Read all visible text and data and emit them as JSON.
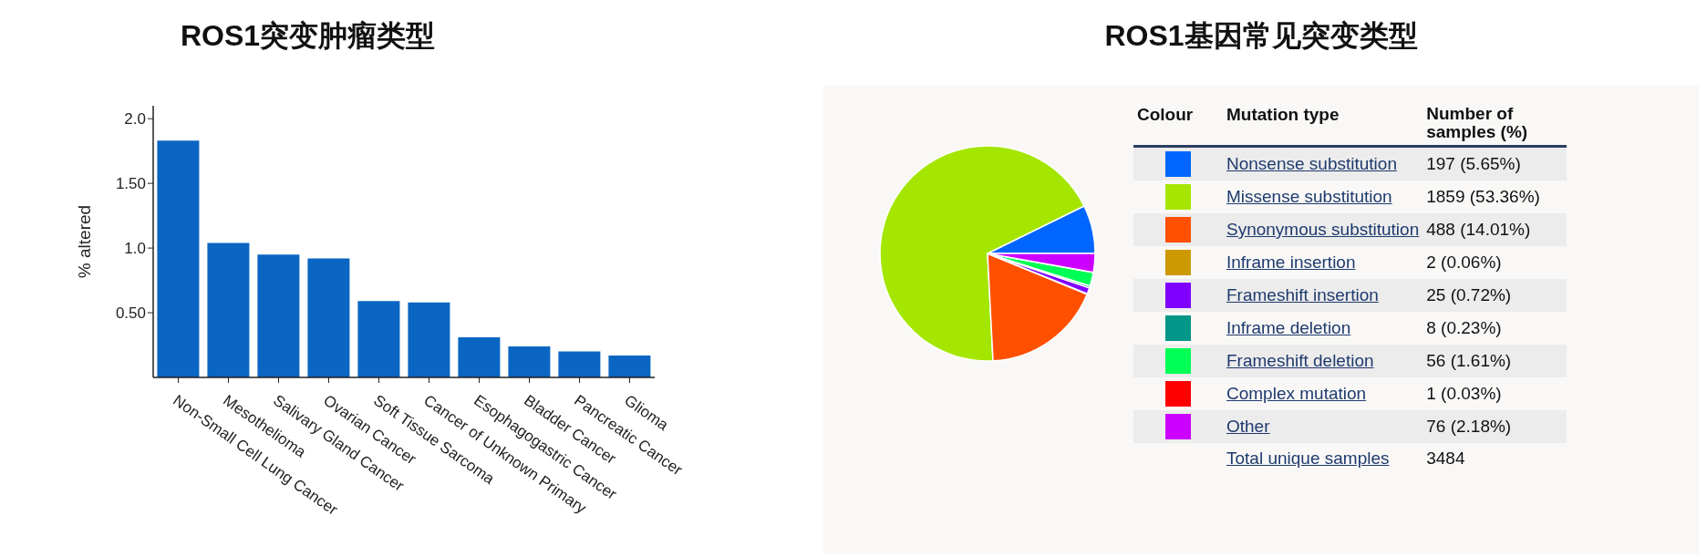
{
  "chart_data": [
    {
      "type": "bar",
      "title": "ROS1突变肿瘤类型",
      "ylabel": "% altered",
      "categories": [
        "Non-Small Cell Lung Cancer",
        "Mesothelioma",
        "Salivary Gland Cancer",
        "Ovarian Cancer",
        "Soft Tissue Sarcoma",
        "Cancer of Unknown Primary",
        "Esophagogastric Cancer",
        "Bladder Cancer",
        "Pancreatic Cancer",
        "Glioma"
      ],
      "values": [
        1.83,
        1.04,
        0.95,
        0.92,
        0.59,
        0.58,
        0.31,
        0.24,
        0.2,
        0.17
      ],
      "color": "#0a66c2",
      "ylim": [
        0,
        2.1
      ],
      "yticks": [
        {
          "value": 0.5,
          "label": "0.50"
        },
        {
          "value": 1,
          "label": "1.0"
        },
        {
          "value": 1.5,
          "label": "1.50"
        },
        {
          "value": 2,
          "label": "2.0"
        }
      ]
    },
    {
      "type": "pie",
      "title": "ROS1基因常见突变类型",
      "categories": [
        "Nonsense substitution",
        "Missense substitution",
        "Synonymous substitution",
        "Inframe insertion",
        "Frameshift insertion",
        "Inframe deletion",
        "Frameshift deletion",
        "Complex mutation",
        "Other"
      ],
      "values": [
        197,
        1859,
        488,
        2,
        25,
        8,
        56,
        1,
        76
      ],
      "colors": [
        "#0066ff",
        "#a4e600",
        "#ff5000",
        "#cc9900",
        "#8000ff",
        "#009688",
        "#00ff55",
        "#ff0000",
        "#cc00ff"
      ],
      "value_labels": [
        "197 (5.65%)",
        "1859 (53.36%)",
        "488 (14.01%)",
        "2 (0.06%)",
        "25 (0.72%)",
        "8 (0.23%)",
        "56 (1.61%)",
        "1 (0.03%)",
        "76 (2.18%)"
      ],
      "legend": "right",
      "annotations": [
        "Colour",
        "Mutation type",
        "Number of samples (%)",
        "Total unique samples",
        "3484"
      ]
    }
  ]
}
